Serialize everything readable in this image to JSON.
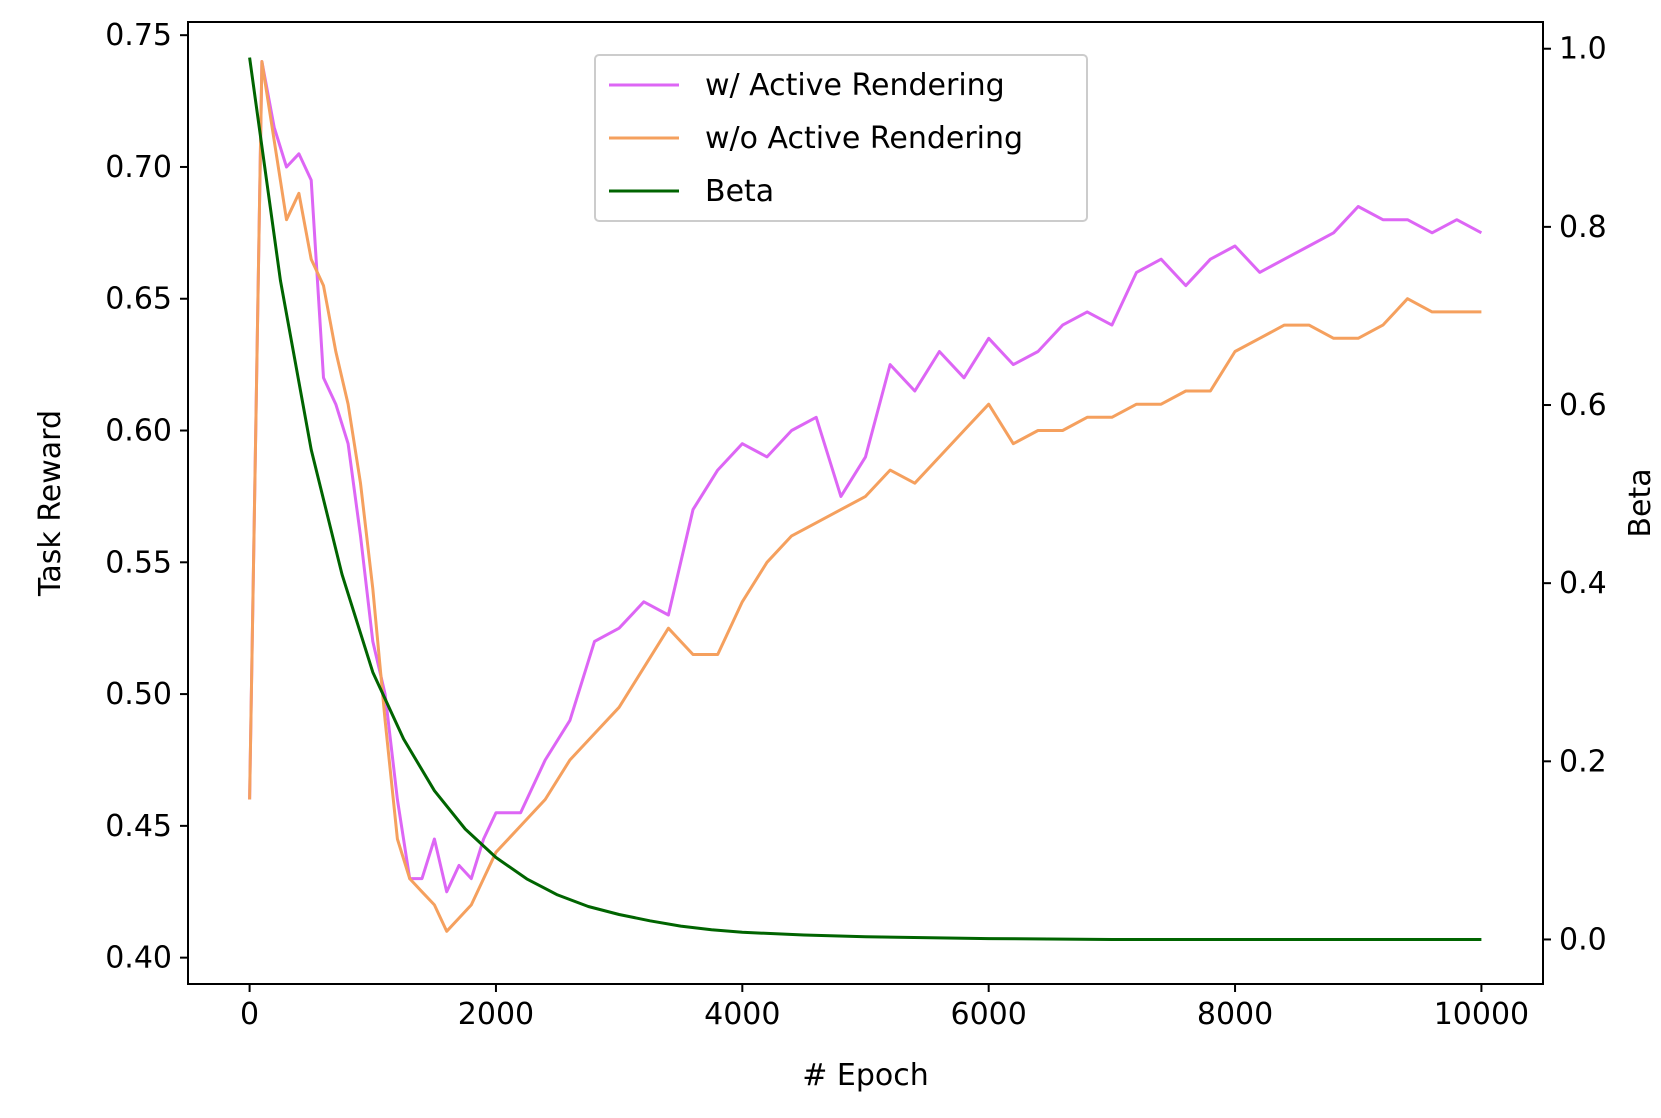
{
  "chart_data": {
    "type": "line",
    "title": "",
    "xlabel": "# Epoch",
    "ylabel": "Task Reward",
    "y2label": "Beta",
    "xlim": [
      -500,
      10500
    ],
    "ylim": [
      0.39,
      0.755
    ],
    "y2lim": [
      -0.05,
      1.03
    ],
    "xticks": [
      0,
      2000,
      4000,
      6000,
      8000,
      10000
    ],
    "xtick_labels": [
      "0",
      "2000",
      "4000",
      "6000",
      "8000",
      "10000"
    ],
    "yticks": [
      0.4,
      0.45,
      0.5,
      0.55,
      0.6,
      0.65,
      0.7,
      0.75
    ],
    "ytick_labels": [
      "0.40",
      "0.45",
      "0.50",
      "0.55",
      "0.60",
      "0.65",
      "0.70",
      "0.75"
    ],
    "y2ticks": [
      0.0,
      0.2,
      0.4,
      0.6,
      0.8,
      1.0
    ],
    "y2tick_labels": [
      "0.0",
      "0.2",
      "0.4",
      "0.6",
      "0.8",
      "1.0"
    ],
    "grid": false,
    "legend_position": "top-center",
    "series": [
      {
        "name": "w/ Active Rendering",
        "axis": "left",
        "color": "#dd66f5",
        "x": [
          0,
          100,
          200,
          300,
          400,
          500,
          600,
          700,
          800,
          900,
          1000,
          1100,
          1200,
          1300,
          1400,
          1500,
          1600,
          1700,
          1800,
          1900,
          2000,
          2200,
          2400,
          2600,
          2800,
          3000,
          3200,
          3400,
          3600,
          3800,
          4000,
          4200,
          4400,
          4600,
          4800,
          5000,
          5200,
          5400,
          5600,
          5800,
          6000,
          6200,
          6400,
          6600,
          6800,
          7000,
          7200,
          7400,
          7600,
          7800,
          8000,
          8200,
          8400,
          8600,
          8800,
          9000,
          9200,
          9400,
          9600,
          9800,
          10000
        ],
        "values": [
          0.46,
          0.74,
          0.715,
          0.7,
          0.705,
          0.695,
          0.62,
          0.61,
          0.595,
          0.56,
          0.52,
          0.5,
          0.46,
          0.43,
          0.43,
          0.445,
          0.425,
          0.435,
          0.43,
          0.445,
          0.455,
          0.455,
          0.475,
          0.49,
          0.52,
          0.525,
          0.535,
          0.53,
          0.57,
          0.585,
          0.595,
          0.59,
          0.6,
          0.605,
          0.575,
          0.59,
          0.625,
          0.615,
          0.63,
          0.62,
          0.635,
          0.625,
          0.63,
          0.64,
          0.645,
          0.64,
          0.66,
          0.665,
          0.655,
          0.665,
          0.67,
          0.66,
          0.665,
          0.67,
          0.675,
          0.685,
          0.68,
          0.68,
          0.675,
          0.68,
          0.675
        ]
      },
      {
        "name": "w/o Active Rendering",
        "axis": "left",
        "color": "#f5a05e",
        "x": [
          0,
          100,
          200,
          300,
          400,
          500,
          600,
          700,
          800,
          900,
          1000,
          1100,
          1200,
          1300,
          1400,
          1500,
          1600,
          1700,
          1800,
          1900,
          2000,
          2200,
          2400,
          2600,
          2800,
          3000,
          3200,
          3400,
          3600,
          3800,
          4000,
          4200,
          4400,
          4600,
          4800,
          5000,
          5200,
          5400,
          5600,
          5800,
          6000,
          6200,
          6400,
          6600,
          6800,
          7000,
          7200,
          7400,
          7600,
          7800,
          8000,
          8200,
          8400,
          8600,
          8800,
          9000,
          9200,
          9400,
          9600,
          9800,
          10000
        ],
        "values": [
          0.46,
          0.74,
          0.71,
          0.68,
          0.69,
          0.665,
          0.655,
          0.63,
          0.61,
          0.58,
          0.54,
          0.49,
          0.445,
          0.43,
          0.425,
          0.42,
          0.41,
          0.415,
          0.42,
          0.43,
          0.44,
          0.45,
          0.46,
          0.475,
          0.485,
          0.495,
          0.51,
          0.525,
          0.515,
          0.515,
          0.535,
          0.55,
          0.56,
          0.565,
          0.57,
          0.575,
          0.585,
          0.58,
          0.59,
          0.6,
          0.61,
          0.595,
          0.6,
          0.6,
          0.605,
          0.605,
          0.61,
          0.61,
          0.615,
          0.615,
          0.63,
          0.635,
          0.64,
          0.64,
          0.635,
          0.635,
          0.64,
          0.65,
          0.645,
          0.645,
          0.645
        ]
      },
      {
        "name": "Beta",
        "axis": "right",
        "color": "#006400",
        "x": [
          0,
          250,
          500,
          750,
          1000,
          1250,
          1500,
          1750,
          2000,
          2250,
          2500,
          2750,
          3000,
          3250,
          3500,
          3750,
          4000,
          4500,
          5000,
          6000,
          7000,
          8000,
          9000,
          10000
        ],
        "values": [
          0.99,
          0.74,
          0.55,
          0.41,
          0.3,
          0.225,
          0.167,
          0.124,
          0.092,
          0.068,
          0.05,
          0.037,
          0.028,
          0.021,
          0.015,
          0.011,
          0.008,
          0.005,
          0.003,
          0.001,
          0.0,
          0.0,
          0.0,
          0.0
        ]
      }
    ]
  }
}
